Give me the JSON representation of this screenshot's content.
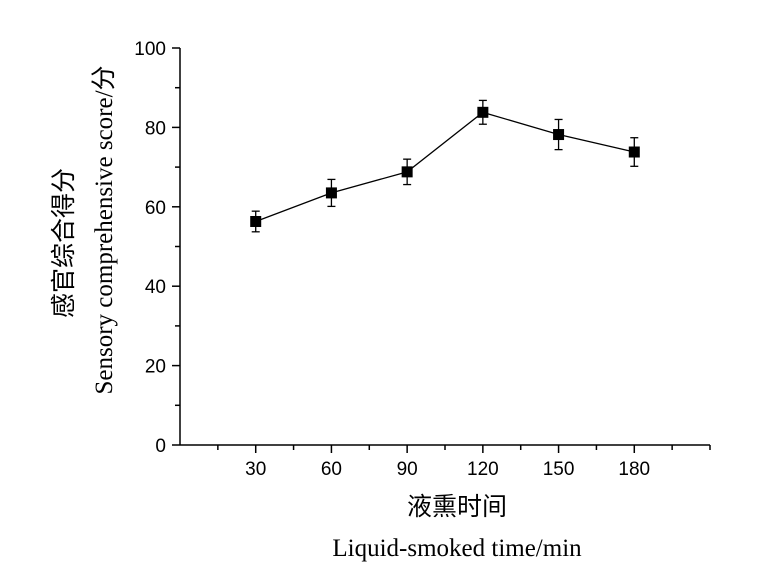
{
  "chart_data": {
    "type": "line",
    "xlabel_lines": [
      "液熏时间",
      "Liquid-smoked time/min"
    ],
    "ylabel": "感官综合得分 Sensory comprehensive score/分",
    "ylabel_lines": [
      "感官综合得分",
      "Sensory comprehensive score/分"
    ],
    "x_tick_labels": [
      "30",
      "60",
      "90",
      "120",
      "150",
      "180"
    ],
    "y_tick_labels": [
      "0",
      "20",
      "40",
      "60",
      "80",
      "100"
    ],
    "xlim": [
      0,
      210
    ],
    "ylim": [
      0,
      100
    ],
    "grid": false,
    "marker": "square",
    "series": [
      {
        "x": [
          30,
          60,
          90,
          120,
          150,
          180
        ],
        "values": [
          56.3,
          63.5,
          68.8,
          83.8,
          78.2,
          73.8
        ],
        "error": [
          2.6,
          3.4,
          3.2,
          3.0,
          3.8,
          3.6
        ]
      }
    ]
  }
}
